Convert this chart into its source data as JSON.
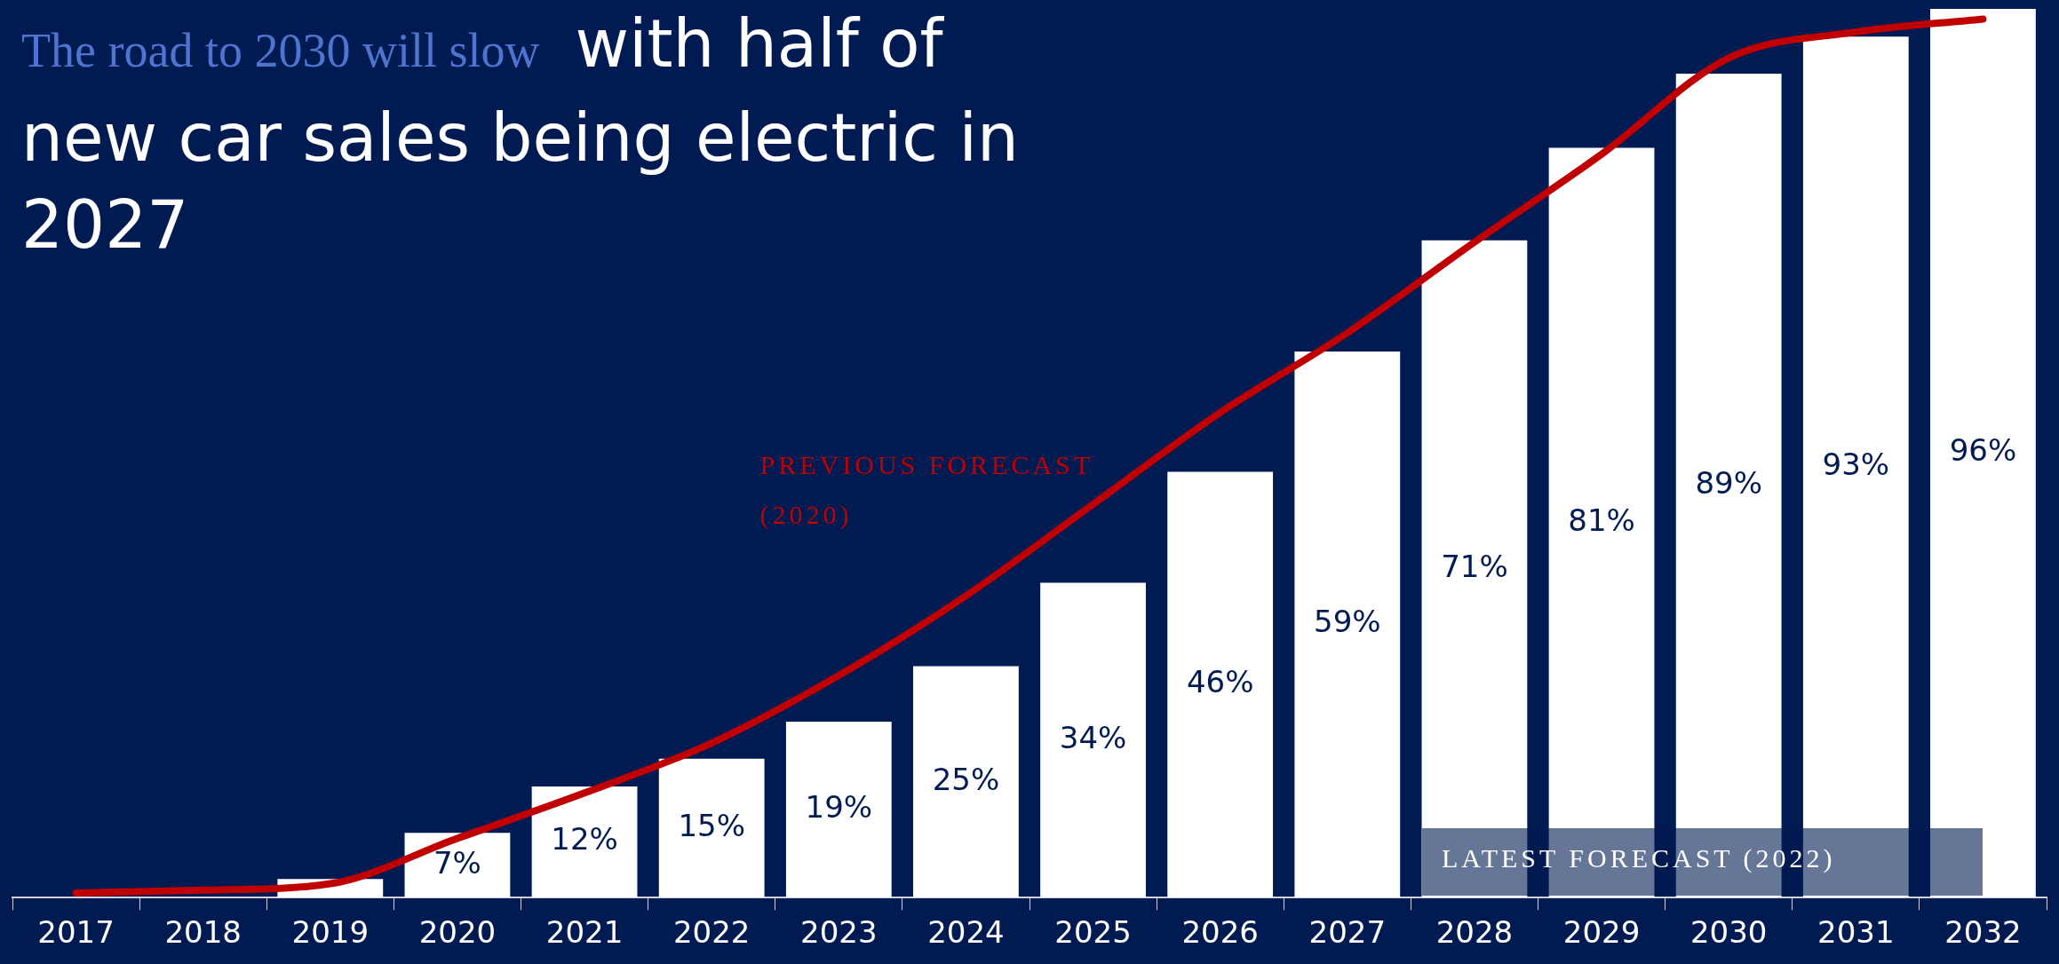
{
  "chart_data": {
    "type": "bar",
    "title": "The road to 2030 will slow",
    "subtitle": "with half of new car sales being electric in 2027",
    "categories": [
      "2017",
      "2018",
      "2019",
      "2020",
      "2021",
      "2022",
      "2023",
      "2024",
      "2025",
      "2026",
      "2027",
      "2028",
      "2029",
      "2030",
      "2031",
      "2032"
    ],
    "series": [
      {
        "name": "LATEST FORECAST (2022)",
        "color": "#ffffff",
        "values": [
          null,
          null,
          2,
          7,
          12,
          15,
          19,
          25,
          34,
          46,
          59,
          71,
          81,
          89,
          93,
          96
        ],
        "value_labels": [
          null,
          null,
          null,
          "7%",
          "12%",
          "15%",
          "19%",
          "25%",
          "34%",
          "46%",
          "59%",
          "71%",
          "81%",
          "89%",
          "93%",
          "96%"
        ]
      },
      {
        "type": "line",
        "name": "PREVIOUS FORECAST (2020)",
        "color": "#c00000",
        "values": [
          0.5,
          0.8,
          1.5,
          6.4,
          11.3,
          16.7,
          24,
          32.6,
          42.5,
          52.4,
          61,
          70.8,
          80.3,
          90.7,
          93.5,
          94.9
        ]
      }
    ]
  }
}
